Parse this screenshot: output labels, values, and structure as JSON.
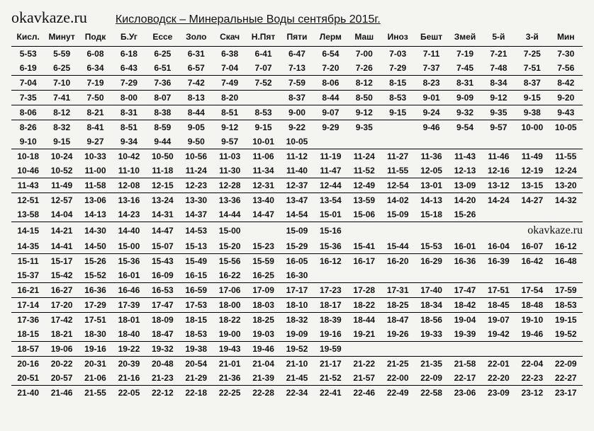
{
  "site": "okavkaze.ru",
  "title": "Кисловодск – Минеральные Воды  сентябрь  2015г.",
  "watermark": "okavkaze.ru",
  "columns": [
    "Кисл.",
    "Минут",
    "Подк",
    "Б.Уг",
    "Ессе",
    "Золо",
    "Скач",
    "Н.Пят",
    "Пяти",
    "Лерм",
    "Маш",
    "Иноз",
    "Бешт",
    "Змей",
    "5-й",
    "3-й",
    "Мин"
  ],
  "rows": [
    {
      "sep": false,
      "cells": [
        "5-53",
        "5-59",
        "6-08",
        "6-18",
        "6-25",
        "6-31",
        "6-38",
        "6-41",
        "6-47",
        "6-54",
        "7-00",
        "7-03",
        "7-11",
        "7-19",
        "7-21",
        "7-25",
        "7-30"
      ]
    },
    {
      "sep": true,
      "cells": [
        "6-19",
        "6-25",
        "6-34",
        "6-43",
        "6-51",
        "6-57",
        "7-04",
        "7-07",
        "7-13",
        "7-20",
        "7-26",
        "7-29",
        "7-37",
        "7-45",
        "7-48",
        "7-51",
        "7-56"
      ]
    },
    {
      "sep": true,
      "cells": [
        "7-04",
        "7-10",
        "7-19",
        "7-29",
        "7-36",
        "7-42",
        "7-49",
        "7-52",
        "7-59",
        "8-06",
        "8-12",
        "8-15",
        "8-23",
        "8-31",
        "8-34",
        "8-37",
        "8-42"
      ]
    },
    {
      "sep": true,
      "cells": [
        "7-35",
        "7-41",
        "7-50",
        "8-00",
        "8-07",
        "8-13",
        "8-20",
        "",
        "8-37",
        "8-44",
        "8-50",
        "8-53",
        "9-01",
        "9-09",
        "9-12",
        "9-15",
        "9-20"
      ]
    },
    {
      "sep": true,
      "cells": [
        "8-06",
        "8-12",
        "8-21",
        "8-31",
        "8-38",
        "8-44",
        "8-51",
        "8-53",
        "9-00",
        "9-07",
        "9-12",
        "9-15",
        "9-24",
        "9-32",
        "9-35",
        "9-38",
        "9-43"
      ]
    },
    {
      "sep": false,
      "cells": [
        "8-26",
        "8-32",
        "8-41",
        "8-51",
        "8-59",
        "9-05",
        "9-12",
        "9-15",
        "9-22",
        "9-29",
        "9-35",
        "",
        "9-46",
        "9-54",
        "9-57",
        "10-00",
        "10-05"
      ]
    },
    {
      "sep": true,
      "cells": [
        "9-10",
        "9-15",
        "9-27",
        "9-34",
        "9-44",
        "9-50",
        "9-57",
        "10-01",
        "10-05",
        "",
        "",
        "",
        "",
        "",
        "",
        "",
        ""
      ]
    },
    {
      "sep": false,
      "cells": [
        "10-18",
        "10-24",
        "10-33",
        "10-42",
        "10-50",
        "10-56",
        "11-03",
        "11-06",
        "11-12",
        "11-19",
        "11-24",
        "11-27",
        "11-36",
        "11-43",
        "11-46",
        "11-49",
        "11-55"
      ]
    },
    {
      "sep": true,
      "cells": [
        "10-46",
        "10-52",
        "11-00",
        "11-10",
        "11-18",
        "11-24",
        "11-30",
        "11-34",
        "11-40",
        "11-47",
        "11-52",
        "11-55",
        "12-05",
        "12-13",
        "12-16",
        "12-19",
        "12-24"
      ]
    },
    {
      "sep": true,
      "cells": [
        "11-43",
        "11-49",
        "11-58",
        "12-08",
        "12-15",
        "12-23",
        "12-28",
        "12-31",
        "12-37",
        "12-44",
        "12-49",
        "12-54",
        "13-01",
        "13-09",
        "13-12",
        "13-15",
        "13-20"
      ]
    },
    {
      "sep": false,
      "cells": [
        "12-51",
        "12-57",
        "13-06",
        "13-16",
        "13-24",
        "13-30",
        "13-36",
        "13-40",
        "13-47",
        "13-54",
        "13-59",
        "14-02",
        "14-13",
        "14-20",
        "14-24",
        "14-27",
        "14-32"
      ]
    },
    {
      "sep": true,
      "cells": [
        "13-58",
        "14-04",
        "14-13",
        "14-23",
        "14-31",
        "14-37",
        "14-44",
        "14-47",
        "14-54",
        "15-01",
        "15-06",
        "15-09",
        "15-18",
        "15-26",
        "",
        "",
        ""
      ]
    },
    {
      "sep": false,
      "cells": [
        "14-15",
        "14-21",
        "14-30",
        "14-40",
        "14-47",
        "14-53",
        "15-00",
        "",
        "15-09",
        "15-16",
        "",
        "",
        "",
        "",
        "",
        "",
        ""
      ]
    },
    {
      "sep": true,
      "cells": [
        "14-35",
        "14-41",
        "14-50",
        "15-00",
        "15-07",
        "15-13",
        "15-20",
        "15-23",
        "15-29",
        "15-36",
        "15-41",
        "15-44",
        "15-53",
        "16-01",
        "16-04",
        "16-07",
        "16-12"
      ]
    },
    {
      "sep": false,
      "cells": [
        "15-11",
        "15-17",
        "15-26",
        "15-36",
        "15-43",
        "15-49",
        "15-56",
        "15-59",
        "16-05",
        "16-12",
        "16-17",
        "16-20",
        "16-29",
        "16-36",
        "16-39",
        "16-42",
        "16-48"
      ]
    },
    {
      "sep": true,
      "cells": [
        "15-37",
        "15-42",
        "15-52",
        "16-01",
        "16-09",
        "16-15",
        "16-22",
        "16-25",
        "16-30",
        "",
        "",
        "",
        "",
        "",
        "",
        "",
        ""
      ]
    },
    {
      "sep": true,
      "cells": [
        "16-21",
        "16-27",
        "16-36",
        "16-46",
        "16-53",
        "16-59",
        "17-06",
        "17-09",
        "17-17",
        "17-23",
        "17-28",
        "17-31",
        "17-40",
        "17-47",
        "17-51",
        "17-54",
        "17-59"
      ]
    },
    {
      "sep": true,
      "cells": [
        "17-14",
        "17-20",
        "17-29",
        "17-39",
        "17-47",
        "17-53",
        "18-00",
        "18-03",
        "18-10",
        "18-17",
        "18-22",
        "18-25",
        "18-34",
        "18-42",
        "18-45",
        "18-48",
        "18-53"
      ]
    },
    {
      "sep": false,
      "cells": [
        "17-36",
        "17-42",
        "17-51",
        "18-01",
        "18-09",
        "18-15",
        "18-22",
        "18-25",
        "18-32",
        "18-39",
        "18-44",
        "18-47",
        "18-56",
        "19-04",
        "19-07",
        "19-10",
        "19-15"
      ]
    },
    {
      "sep": true,
      "cells": [
        "18-15",
        "18-21",
        "18-30",
        "18-40",
        "18-47",
        "18-53",
        "19-00",
        "19-03",
        "19-09",
        "19-16",
        "19-21",
        "19-26",
        "19-33",
        "19-39",
        "19-42",
        "19-46",
        "19-52"
      ]
    },
    {
      "sep": true,
      "cells": [
        "18-57",
        "19-06",
        "19-16",
        "19-22",
        "19-32",
        "19-38",
        "19-43",
        "19-46",
        "19-52",
        "19-59",
        "",
        "",
        "",
        "",
        "",
        "",
        ""
      ]
    },
    {
      "sep": false,
      "cells": [
        "20-16",
        "20-22",
        "20-31",
        "20-39",
        "20-48",
        "20-54",
        "21-01",
        "21-04",
        "21-10",
        "21-17",
        "21-22",
        "21-25",
        "21-35",
        "21-58",
        "22-01",
        "22-04",
        "22-09"
      ]
    },
    {
      "sep": true,
      "cells": [
        "20-51",
        "20-57",
        "21-06",
        "21-16",
        "21-23",
        "21-29",
        "21-36",
        "21-39",
        "21-45",
        "21-52",
        "21-57",
        "22-00",
        "22-09",
        "22-17",
        "22-20",
        "22-23",
        "22-27"
      ]
    },
    {
      "sep": false,
      "cells": [
        "21-40",
        "21-46",
        "21-55",
        "22-05",
        "22-12",
        "22-18",
        "22-25",
        "22-28",
        "22-34",
        "22-41",
        "22-46",
        "22-49",
        "22-58",
        "23-06",
        "23-09",
        "23-12",
        "23-17"
      ]
    }
  ],
  "watermark_row_index": 12
}
